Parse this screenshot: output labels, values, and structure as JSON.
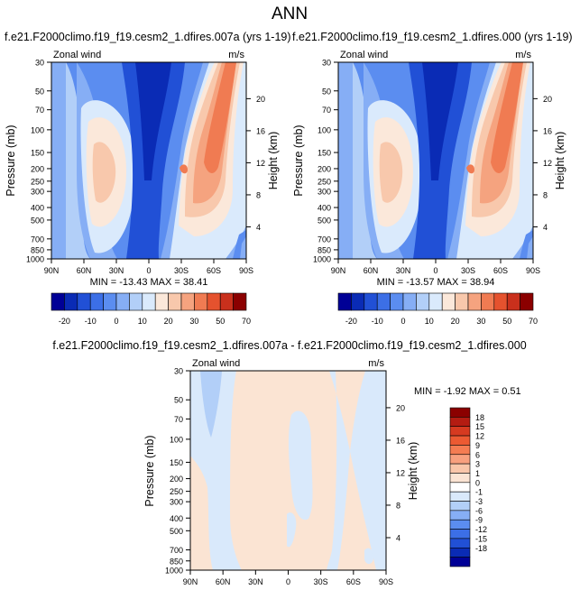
{
  "figure_title": "ANN",
  "chart_data": [
    {
      "type": "contour",
      "panel": "top-left",
      "title": "f.e21.F2000climo.f19_f19.cesm2_1.dfires.007a (yrs 1-19)",
      "field_label": "Zonal wind",
      "units": "m/s",
      "ylabel": "Pressure (mb)",
      "ylabel_right": "Height (km)",
      "x_ticks": [
        "90N",
        "60N",
        "30N",
        "0",
        "30S",
        "60S",
        "90S"
      ],
      "y_ticks": [
        "30",
        "50",
        "70",
        "100",
        "150",
        "200",
        "250",
        "300",
        "400",
        "500",
        "700",
        "850",
        "1000"
      ],
      "height_ticks": [
        "4",
        "8",
        "12",
        "16",
        "20"
      ],
      "stats": "MIN = -13.43   MAX = 38.41",
      "min": -13.43,
      "max": 38.41
    },
    {
      "type": "contour",
      "panel": "top-right",
      "title": "f.e21.F2000climo.f19_f19.cesm2_1.dfires.000 (yrs 1-19)",
      "field_label": "Zonal wind",
      "units": "m/s",
      "ylabel": "Pressure (mb)",
      "ylabel_right": "Height (km)",
      "x_ticks": [
        "90N",
        "60N",
        "30N",
        "0",
        "30S",
        "60S",
        "90S"
      ],
      "y_ticks": [
        "30",
        "50",
        "70",
        "100",
        "150",
        "200",
        "250",
        "300",
        "400",
        "500",
        "700",
        "850",
        "1000"
      ],
      "height_ticks": [
        "4",
        "8",
        "12",
        "16",
        "20"
      ],
      "stats": "MIN = -13.57   MAX = 38.94",
      "min": -13.57,
      "max": 38.94
    },
    {
      "type": "contour",
      "panel": "bottom",
      "title": "f.e21.F2000climo.f19_f19.cesm2_1.dfires.007a - f.e21.F2000climo.f19_f19.cesm2_1.dfires.000",
      "field_label": "Zonal wind",
      "units": "m/s",
      "ylabel": "Pressure (mb)",
      "ylabel_right": "Height (km)",
      "x_ticks": [
        "90N",
        "60N",
        "30N",
        "0",
        "30S",
        "60S",
        "90S"
      ],
      "y_ticks": [
        "30",
        "50",
        "70",
        "100",
        "150",
        "200",
        "250",
        "300",
        "400",
        "500",
        "700",
        "850",
        "1000"
      ],
      "height_ticks": [
        "4",
        "8",
        "12",
        "16",
        "20"
      ],
      "stats": "MIN = -1.92   MAX =  0.51",
      "min": -1.92,
      "max": 0.51
    }
  ],
  "colorbars": {
    "top": {
      "labels": [
        "-20",
        "-10",
        "0",
        "10",
        "20",
        "30",
        "50",
        "70"
      ],
      "colors": [
        "#000096",
        "#0a2bb5",
        "#2150d6",
        "#3c6fe6",
        "#5b8df0",
        "#86aef5",
        "#b2cff8",
        "#daeafc",
        "#fbe8da",
        "#f8c8ac",
        "#f5a37f",
        "#f07b52",
        "#e5522e",
        "#c9301c",
        "#8b0000"
      ]
    },
    "bottom": {
      "labels": [
        "18",
        "15",
        "12",
        "9",
        "6",
        "3",
        "1",
        "0",
        "-1",
        "-3",
        "-6",
        "-9",
        "-12",
        "-15",
        "-18"
      ],
      "colors": [
        "#8b0000",
        "#b41c12",
        "#d63a20",
        "#ec5a32",
        "#f57c52",
        "#f8a07e",
        "#f9c6a9",
        "#fbe4d3",
        "#ffffff",
        "#d9e9fb",
        "#b2cff8",
        "#86aef5",
        "#5b8df0",
        "#3c6fe6",
        "#2150d6",
        "#0a2bb5",
        "#000096"
      ]
    }
  }
}
